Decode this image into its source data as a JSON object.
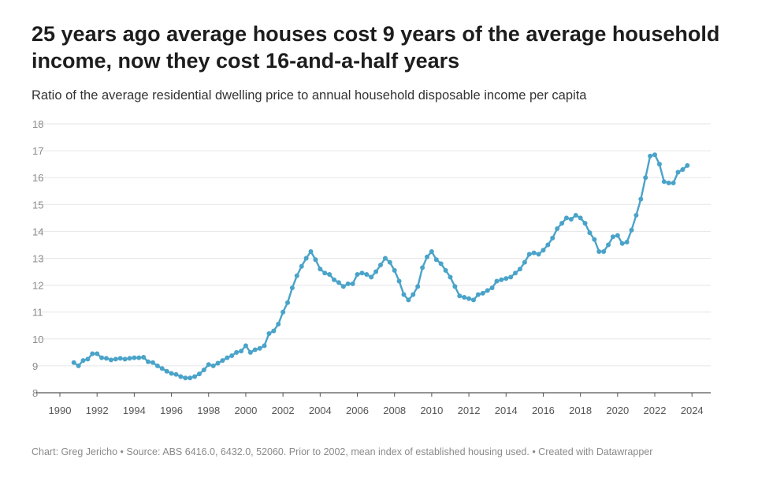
{
  "header": {
    "title": "25 years ago average houses cost 9 years of the average household income, now they cost 16-and-a-half years",
    "subtitle": "Ratio of the average residential dwelling price to annual household disposable income per capita"
  },
  "footer": {
    "credit": "Chart: Greg Jericho • Source: ABS 6416.0, 6432.0, 52060. Prior to 2002, mean index of established housing used. • Created with Datawrapper"
  },
  "colors": {
    "line": "#4aa3c9",
    "grid": "#e6e6e6",
    "axis": "#555555"
  },
  "chart_data": {
    "type": "line",
    "title": "25 years ago average houses cost 9 years of the average household income, now they cost 16-and-a-half years",
    "subtitle": "Ratio of the average residential dwelling price to annual household disposable income per capita",
    "xlabel": "",
    "ylabel": "",
    "xlim": [
      1990,
      2024.5
    ],
    "ylim": [
      8,
      18
    ],
    "y_ticks": [
      8,
      9,
      10,
      11,
      12,
      13,
      14,
      15,
      16,
      17,
      18
    ],
    "x_ticks": [
      1990,
      1992,
      1994,
      1996,
      1998,
      2000,
      2002,
      2004,
      2006,
      2008,
      2010,
      2012,
      2014,
      2016,
      2018,
      2020,
      2022,
      2024
    ],
    "grid": true,
    "markers": true,
    "series": [
      {
        "x": [
          1990.75,
          1991.0,
          1991.25,
          1991.5,
          1991.75,
          1992.0,
          1992.25,
          1992.5,
          1992.75,
          1993.0,
          1993.25,
          1993.5,
          1993.75,
          1994.0,
          1994.25,
          1994.5,
          1994.75,
          1995.0,
          1995.25,
          1995.5,
          1995.75,
          1996.0,
          1996.25,
          1996.5,
          1996.75,
          1997.0,
          1997.25,
          1997.5,
          1997.75,
          1998.0,
          1998.25,
          1998.5,
          1998.75,
          1999.0,
          1999.25,
          1999.5,
          1999.75,
          2000.0,
          2000.25,
          2000.5,
          2000.75,
          2001.0,
          2001.25,
          2001.5,
          2001.75,
          2002.0,
          2002.25,
          2002.5,
          2002.75,
          2003.0,
          2003.25,
          2003.5,
          2003.75,
          2004.0,
          2004.25,
          2004.5,
          2004.75,
          2005.0,
          2005.25,
          2005.5,
          2005.75,
          2006.0,
          2006.25,
          2006.5,
          2006.75,
          2007.0,
          2007.25,
          2007.5,
          2007.75,
          2008.0,
          2008.25,
          2008.5,
          2008.75,
          2009.0,
          2009.25,
          2009.5,
          2009.75,
          2010.0,
          2010.25,
          2010.5,
          2010.75,
          2011.0,
          2011.25,
          2011.5,
          2011.75,
          2012.0,
          2012.25,
          2012.5,
          2012.75,
          2013.0,
          2013.25,
          2013.5,
          2013.75,
          2014.0,
          2014.25,
          2014.5,
          2014.75,
          2015.0,
          2015.25,
          2015.5,
          2015.75,
          2016.0,
          2016.25,
          2016.5,
          2016.75,
          2017.0,
          2017.25,
          2017.5,
          2017.75,
          2018.0,
          2018.25,
          2018.5,
          2018.75,
          2019.0,
          2019.25,
          2019.5,
          2019.75,
          2020.0,
          2020.25,
          2020.5,
          2020.75,
          2021.0,
          2021.25,
          2021.5,
          2021.75,
          2022.0,
          2022.25,
          2022.5,
          2022.75,
          2023.0,
          2023.25,
          2023.5,
          2023.75
        ],
        "values": [
          9.12,
          9.0,
          9.2,
          9.25,
          9.45,
          9.45,
          9.3,
          9.28,
          9.22,
          9.25,
          9.28,
          9.25,
          9.28,
          9.3,
          9.3,
          9.32,
          9.15,
          9.12,
          9.0,
          8.9,
          8.8,
          8.72,
          8.68,
          8.6,
          8.55,
          8.55,
          8.6,
          8.7,
          8.85,
          9.05,
          9.0,
          9.1,
          9.2,
          9.3,
          9.38,
          9.5,
          9.55,
          9.75,
          9.5,
          9.6,
          9.65,
          9.75,
          10.2,
          10.3,
          10.55,
          11.0,
          11.35,
          11.9,
          12.35,
          12.7,
          13.0,
          13.25,
          12.95,
          12.6,
          12.45,
          12.4,
          12.2,
          12.1,
          11.95,
          12.05,
          12.05,
          12.4,
          12.45,
          12.4,
          12.3,
          12.5,
          12.75,
          13.0,
          12.85,
          12.55,
          12.15,
          11.65,
          11.45,
          11.65,
          11.95,
          12.65,
          13.05,
          13.25,
          12.95,
          12.8,
          12.55,
          12.3,
          11.95,
          11.6,
          11.55,
          11.5,
          11.45,
          11.65,
          11.7,
          11.8,
          11.9,
          12.15,
          12.2,
          12.25,
          12.3,
          12.45,
          12.6,
          12.85,
          13.15,
          13.2,
          13.15,
          13.3,
          13.5,
          13.75,
          14.1,
          14.3,
          14.5,
          14.45,
          14.6,
          14.5,
          14.3,
          13.95,
          13.7,
          13.25,
          13.25,
          13.5,
          13.8,
          13.85,
          13.55,
          13.6,
          14.05,
          14.6,
          15.2,
          16.0,
          16.8,
          16.85,
          16.5,
          15.85,
          15.8,
          15.8,
          16.2,
          16.3,
          16.45
        ]
      }
    ]
  }
}
